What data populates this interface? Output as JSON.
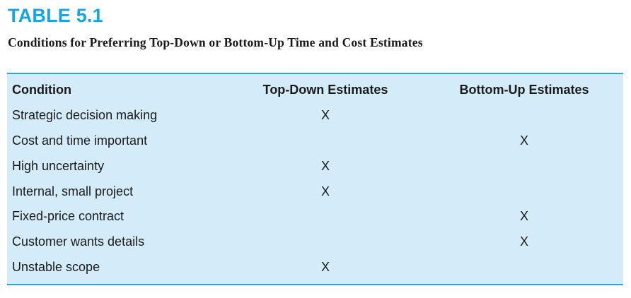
{
  "table_number": "TABLE 5.1",
  "caption": "Conditions for Preferring Top-Down or Bottom-Up Time and Cost Estimates",
  "columns": [
    "Condition",
    "Top-Down Estimates",
    "Bottom-Up Estimates"
  ],
  "rows": [
    [
      "Strategic decision making",
      "X",
      ""
    ],
    [
      "Cost and time important",
      "",
      "X"
    ],
    [
      "High uncertainty",
      "X",
      ""
    ],
    [
      "Internal, small project",
      "X",
      ""
    ],
    [
      "Fixed-price contract",
      "",
      "X"
    ],
    [
      "Customer wants details",
      "",
      "X"
    ],
    [
      "Unstable scope",
      "X",
      ""
    ]
  ],
  "colors": {
    "accent": "#1aa3e0",
    "table_background": "#d4ecfa",
    "rule": "#2aa6df",
    "text": "#1a1a1a"
  }
}
